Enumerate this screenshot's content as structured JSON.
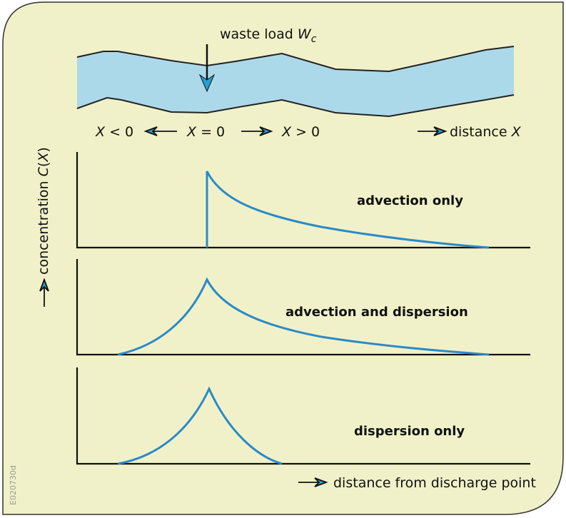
{
  "river": {
    "label": {
      "text": "waste load",
      "var": "W",
      "sub": "c"
    },
    "positions": [
      {
        "var": "X",
        "rest": "< 0"
      },
      {
        "var": "X",
        "rest": "= 0"
      },
      {
        "var": "X",
        "rest": "> 0"
      }
    ],
    "distance": {
      "text": "distance",
      "var": "X"
    }
  },
  "y_axis_label": {
    "text": "concentration",
    "var": "C",
    "open": "(",
    "arg": "X",
    "close": ")"
  },
  "panels": [
    {
      "label": "advection only"
    },
    {
      "label": "advection and dispersion"
    },
    {
      "label": "dispersion only"
    }
  ],
  "x_axis_label": "distance from discharge point",
  "figure_id": "E020730d"
}
